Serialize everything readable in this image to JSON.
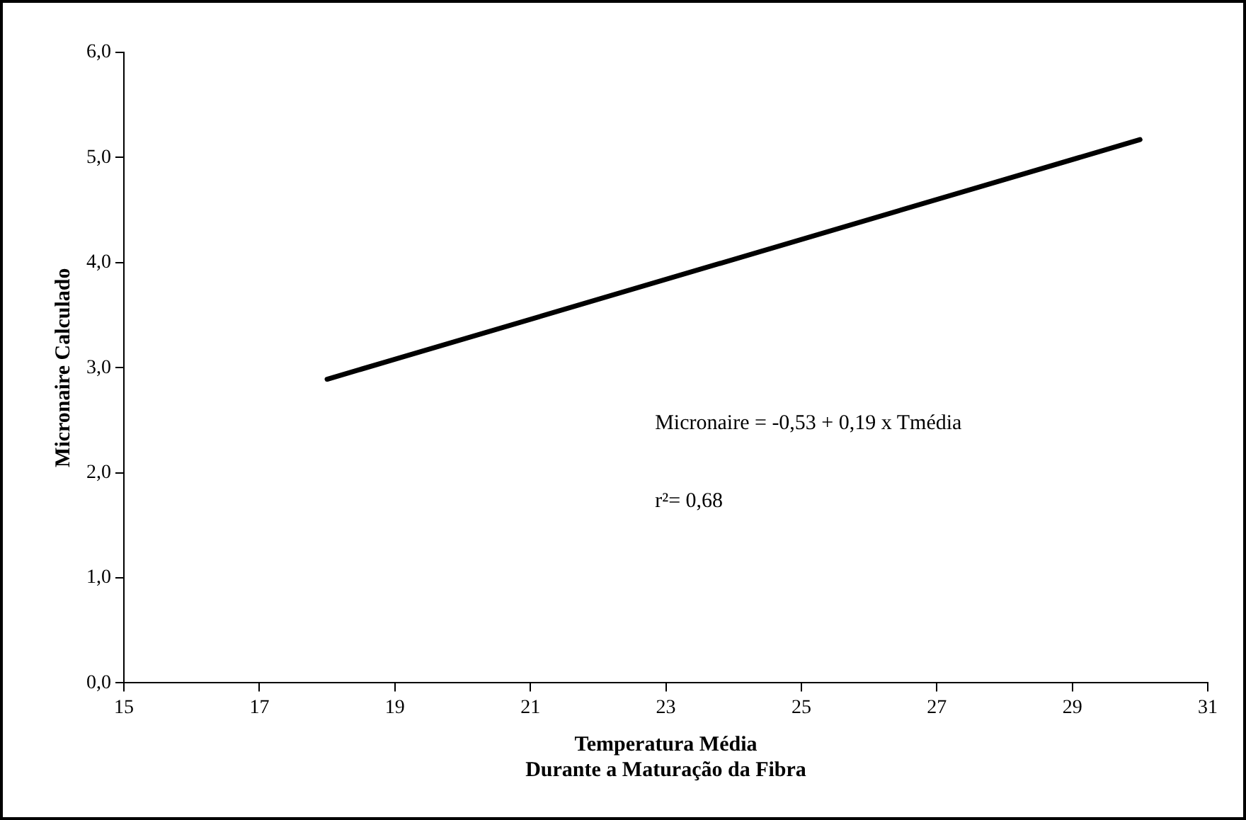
{
  "chart_data": {
    "type": "line",
    "xlabel": "Temperatura Média\nDurante a Maturação da Fibra",
    "ylabel": "Micronaire Calculado",
    "x": [
      18,
      30
    ],
    "series": [
      {
        "color": "#000000",
        "values": [
          2.89,
          5.17
        ]
      }
    ],
    "xlim": [
      15,
      31
    ],
    "xticks": [
      15,
      17,
      19,
      21,
      23,
      25,
      27,
      29,
      31
    ],
    "ylim": [
      0,
      6
    ],
    "yticks": [
      {
        "value": 0,
        "label": "0,0"
      },
      {
        "value": 1,
        "label": "1,0"
      },
      {
        "value": 2,
        "label": "2,0"
      },
      {
        "value": 3,
        "label": "3,0"
      },
      {
        "value": 4,
        "label": "4,0"
      },
      {
        "value": 5,
        "label": "5,0"
      },
      {
        "value": 6,
        "label": "6,0"
      }
    ],
    "annotations": [
      "Micronaire = -0,53  + 0,19  x  Tmédia",
      "r²= 0,68"
    ],
    "grid": false,
    "legend": false,
    "marker": "none",
    "line_style": "solid"
  }
}
